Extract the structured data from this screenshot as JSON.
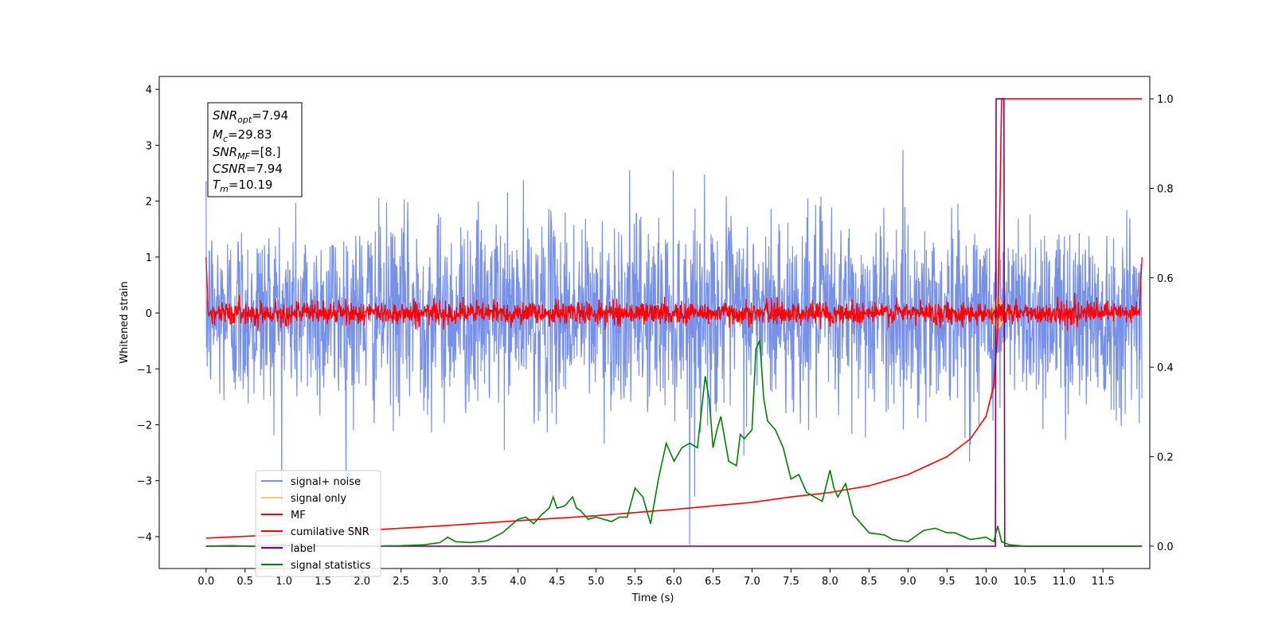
{
  "chart_data": {
    "type": "line",
    "xlabel": "Time (s)",
    "ylabel": "Whitened strain",
    "xlim": [
      -0.6,
      12.1
    ],
    "ylim": [
      -4.57,
      4.23
    ],
    "ylim_right": [
      -0.05,
      1.05
    ],
    "x_ticks": [
      "0.0",
      "0.5",
      "1.0",
      "1.5",
      "2.0",
      "2.5",
      "3.0",
      "3.5",
      "4.0",
      "4.5",
      "5.0",
      "5.5",
      "6.0",
      "6.5",
      "7.0",
      "7.5",
      "8.0",
      "8.5",
      "9.0",
      "9.5",
      "10.0",
      "10.5",
      "11.0",
      "11.5"
    ],
    "y_ticks_left": [
      "4",
      "3",
      "2",
      "1",
      "0",
      "−1",
      "−2",
      "−3",
      "−4"
    ],
    "y_ticks_right": [
      "1.0",
      "0.8",
      "0.6",
      "0.4",
      "0.2",
      "0.0"
    ],
    "grid": false,
    "legend_position": "lower-left",
    "info_box": {
      "snr_opt": "7.94",
      "mc": "29.83",
      "snr_mf": "[8.]",
      "csnr": "7.94",
      "tm": "10.19"
    },
    "series": [
      {
        "name": "signal+ noise",
        "color": "#7891e8",
        "axis": "left",
        "description_stats": {
          "std": 0.85,
          "min_outlier_x": 6.2,
          "min_outlier_y": -4.15,
          "t_start": 0.0,
          "t_end": 12.0
        }
      },
      {
        "name": "signal only",
        "color": "#f5c77e",
        "axis": "left",
        "peak_time": 10.15,
        "peak_amplitude": 0.3
      },
      {
        "name": "MF",
        "color": "#ff0000",
        "axis": "left",
        "std": 0.1,
        "edge_value": 1.0
      },
      {
        "name": "cumilative SNR",
        "color": "#ff0000",
        "axis": "right",
        "x": [
          0.0,
          1.0,
          2.0,
          3.0,
          4.0,
          5.0,
          6.0,
          7.0,
          7.5,
          8.0,
          8.5,
          9.0,
          9.5,
          9.8,
          10.0,
          10.1,
          10.15,
          10.18,
          10.2,
          12.0
        ],
        "y": [
          0.018,
          0.026,
          0.035,
          0.045,
          0.057,
          0.068,
          0.082,
          0.098,
          0.11,
          0.12,
          0.135,
          0.16,
          0.2,
          0.24,
          0.29,
          0.36,
          0.48,
          0.78,
          1.0,
          1.0
        ]
      },
      {
        "name": "label",
        "color": "#800080",
        "axis": "right",
        "x": [
          0.0,
          10.12,
          10.13,
          10.23,
          10.24,
          12.0
        ],
        "y": [
          0.0,
          0.0,
          1.0,
          1.0,
          0.0,
          0.0
        ]
      },
      {
        "name": "signal statistics",
        "color": "#008000",
        "axis": "right",
        "x": [
          0.0,
          0.3,
          0.6,
          1.0,
          1.5,
          2.0,
          2.5,
          2.8,
          3.0,
          3.1,
          3.2,
          3.4,
          3.6,
          3.8,
          3.9,
          4.0,
          4.1,
          4.2,
          4.3,
          4.4,
          4.45,
          4.5,
          4.6,
          4.7,
          4.75,
          4.8,
          4.9,
          5.0,
          5.1,
          5.2,
          5.3,
          5.4,
          5.5,
          5.6,
          5.7,
          5.8,
          5.9,
          6.0,
          6.1,
          6.2,
          6.3,
          6.4,
          6.45,
          6.5,
          6.55,
          6.6,
          6.7,
          6.8,
          6.85,
          6.9,
          7.0,
          7.05,
          7.1,
          7.15,
          7.2,
          7.3,
          7.4,
          7.5,
          7.6,
          7.7,
          7.8,
          7.9,
          8.0,
          8.05,
          8.1,
          8.2,
          8.3,
          8.4,
          8.5,
          8.7,
          8.8,
          9.0,
          9.2,
          9.35,
          9.5,
          9.6,
          9.8,
          10.0,
          10.1,
          10.15,
          10.2,
          10.3,
          10.5,
          11.0,
          12.0
        ],
        "y": [
          0.0,
          0.001,
          0.0,
          0.003,
          0.001,
          0.0,
          0.001,
          0.003,
          0.008,
          0.02,
          0.01,
          0.008,
          0.012,
          0.03,
          0.045,
          0.06,
          0.065,
          0.05,
          0.07,
          0.085,
          0.11,
          0.085,
          0.09,
          0.11,
          0.085,
          0.08,
          0.06,
          0.065,
          0.06,
          0.055,
          0.065,
          0.065,
          0.13,
          0.11,
          0.05,
          0.15,
          0.23,
          0.19,
          0.22,
          0.23,
          0.22,
          0.38,
          0.33,
          0.22,
          0.26,
          0.29,
          0.19,
          0.18,
          0.25,
          0.24,
          0.26,
          0.44,
          0.46,
          0.33,
          0.28,
          0.26,
          0.22,
          0.15,
          0.16,
          0.12,
          0.11,
          0.1,
          0.17,
          0.13,
          0.11,
          0.14,
          0.07,
          0.05,
          0.03,
          0.025,
          0.015,
          0.01,
          0.035,
          0.04,
          0.03,
          0.03,
          0.015,
          0.02,
          0.01,
          0.045,
          0.01,
          0.003,
          0.0,
          0.0,
          0.0
        ]
      }
    ]
  }
}
